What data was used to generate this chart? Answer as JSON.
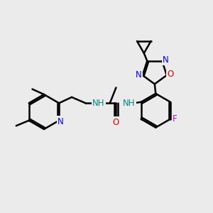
{
  "bg_color": "#ebebeb",
  "bond_color": "#000000",
  "bond_width": 1.8,
  "atom_colors": {
    "N": "#0000ee",
    "O": "#dd0000",
    "F": "#cc00cc",
    "NH": "#008888",
    "C": "#000000"
  },
  "font_size": 8.5,
  "fig_size": [
    3.0,
    3.0
  ],
  "dpi": 100
}
